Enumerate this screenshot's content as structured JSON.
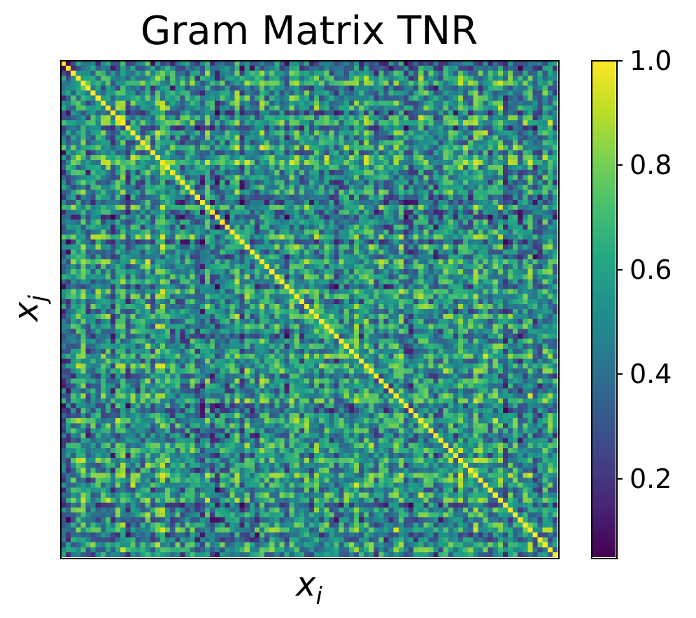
{
  "chart_data": {
    "type": "heatmap",
    "title": "Gram Matrix TNR",
    "xlabel_base": "x",
    "xlabel_sub": "i",
    "ylabel_base": "x",
    "ylabel_sub": "j",
    "size": 100,
    "diagonal_value": 1.0,
    "off_diagonal_range": [
      0.05,
      0.95
    ],
    "colormap": "viridis",
    "colorbar": {
      "range": [
        0.05,
        1.0
      ],
      "ticks": [
        0.2,
        0.4,
        0.6,
        0.8,
        1.0
      ],
      "tick_labels": [
        "0.2",
        "0.4",
        "0.6",
        "0.8",
        "1.0"
      ]
    },
    "x_ticks": "none",
    "y_ticks": "none"
  }
}
